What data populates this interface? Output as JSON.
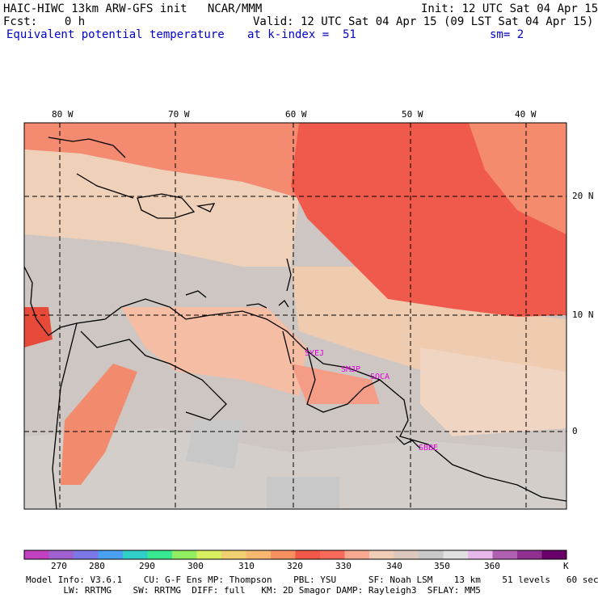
{
  "header": {
    "model_title": "HAIC-HIWC 13km ARW-GFS init   NCAR/MMM",
    "init": "Init: 12 UTC Sat 04 Apr 15",
    "fcst": "Fcst:    0 h",
    "valid": "Valid: 12 UTC Sat 04 Apr 15 (09 LST Sat 04 Apr 15)",
    "field": "Equivalent potential temperature",
    "level": "at k-index =  51",
    "smooth": "sm= 2"
  },
  "axes": {
    "lon_labels": [
      "80 W",
      "70 W",
      "60 W",
      "50 W",
      "40 W"
    ],
    "lat_labels": [
      "20 N",
      "10 N",
      "0"
    ]
  },
  "stations": [
    "SYEJ",
    "SMJP",
    "SOCA",
    "SBBE"
  ],
  "colorbar": {
    "ticks": [
      "270",
      "280",
      "290",
      "300",
      "310",
      "320",
      "330",
      "340",
      "350",
      "360"
    ],
    "unit": "K",
    "colors": [
      "#c040c0",
      "#a060d0",
      "#7c78e8",
      "#4aa0f0",
      "#30d0c8",
      "#38e890",
      "#90ee60",
      "#d8f060",
      "#f0d070",
      "#f8b870",
      "#f89060",
      "#f05848",
      "#f86a5a",
      "#f8a890",
      "#f0cdb6",
      "#dcc7bc",
      "#c8c8c8",
      "#e0e0e0",
      "#e8b8e8",
      "#b060b0",
      "#903090",
      "#6a006a"
    ]
  },
  "footer": {
    "line1": "Model Info: V3.6.1    CU: G-F Ens MP: Thompson    PBL: YSU      SF: Noah LSM    13 km    51 levels   60 sec",
    "line2": "       LW: RRTMG    SW: RRTMG  DIFF: full   KM: 2D Smagor DAMP: Rayleigh3  SFLAY: MM5"
  }
}
